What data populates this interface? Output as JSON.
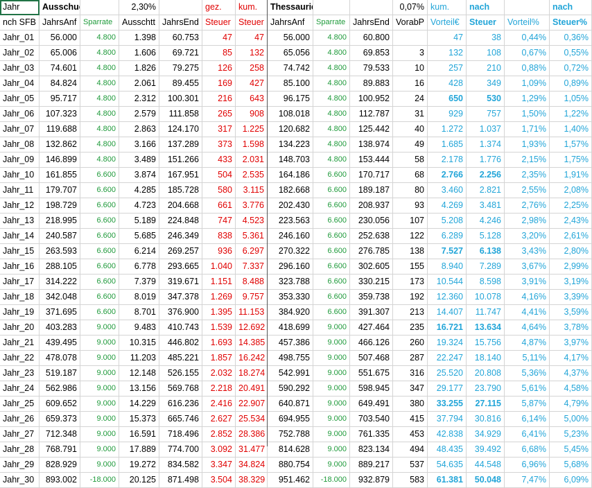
{
  "header_row1": [
    "Jahr",
    "Ausschuetter",
    "",
    "2,30%",
    "",
    "gez.",
    "kum.",
    "Thessaurierer",
    "",
    "",
    "0,07%",
    "kum.",
    "nach",
    "",
    "nach"
  ],
  "header_row2": [
    "nch SFB",
    "JahrsAnf",
    "Sparrate",
    "Ausschtt",
    "JahrsEnd",
    "Steuer",
    "Steuer",
    "JahrsAnf",
    "Sparrate",
    "JahrsEnd",
    "VorabP",
    "Vorteil€",
    "Steuer",
    "Vorteil%",
    "Steuer%"
  ],
  "rows": [
    [
      "Jahr_01",
      "56.000",
      "4.800",
      "1.398",
      "60.753",
      "47",
      "47",
      "56.000",
      "4.800",
      "60.800",
      "",
      "47",
      "38",
      "0,44%",
      "0,36%"
    ],
    [
      "Jahr_02",
      "65.006",
      "4.800",
      "1.606",
      "69.721",
      "85",
      "132",
      "65.056",
      "4.800",
      "69.853",
      "3",
      "132",
      "108",
      "0,67%",
      "0,55%"
    ],
    [
      "Jahr_03",
      "74.601",
      "4.800",
      "1.826",
      "79.275",
      "126",
      "258",
      "74.742",
      "4.800",
      "79.533",
      "10",
      "257",
      "210",
      "0,88%",
      "0,72%"
    ],
    [
      "Jahr_04",
      "84.824",
      "4.800",
      "2.061",
      "89.455",
      "169",
      "427",
      "85.100",
      "4.800",
      "89.883",
      "16",
      "428",
      "349",
      "1,09%",
      "0,89%"
    ],
    [
      "Jahr_05",
      "95.717",
      "4.800",
      "2.312",
      "100.301",
      "216",
      "643",
      "96.175",
      "4.800",
      "100.952",
      "24",
      "650",
      "530",
      "1,29%",
      "1,05%"
    ],
    [
      "Jahr_06",
      "107.323",
      "4.800",
      "2.579",
      "111.858",
      "265",
      "908",
      "108.018",
      "4.800",
      "112.787",
      "31",
      "929",
      "757",
      "1,50%",
      "1,22%"
    ],
    [
      "Jahr_07",
      "119.688",
      "4.800",
      "2.863",
      "124.170",
      "317",
      "1.225",
      "120.682",
      "4.800",
      "125.442",
      "40",
      "1.272",
      "1.037",
      "1,71%",
      "1,40%"
    ],
    [
      "Jahr_08",
      "132.862",
      "4.800",
      "3.166",
      "137.289",
      "373",
      "1.598",
      "134.223",
      "4.800",
      "138.974",
      "49",
      "1.685",
      "1.374",
      "1,93%",
      "1,57%"
    ],
    [
      "Jahr_09",
      "146.899",
      "4.800",
      "3.489",
      "151.266",
      "433",
      "2.031",
      "148.703",
      "4.800",
      "153.444",
      "58",
      "2.178",
      "1.776",
      "2,15%",
      "1,75%"
    ],
    [
      "Jahr_10",
      "161.855",
      "6.600",
      "3.874",
      "167.951",
      "504",
      "2.535",
      "164.186",
      "6.600",
      "170.717",
      "68",
      "2.766",
      "2.256",
      "2,35%",
      "1,91%"
    ],
    [
      "Jahr_11",
      "179.707",
      "6.600",
      "4.285",
      "185.728",
      "580",
      "3.115",
      "182.668",
      "6.600",
      "189.187",
      "80",
      "3.460",
      "2.821",
      "2,55%",
      "2,08%"
    ],
    [
      "Jahr_12",
      "198.729",
      "6.600",
      "4.723",
      "204.668",
      "661",
      "3.776",
      "202.430",
      "6.600",
      "208.937",
      "93",
      "4.269",
      "3.481",
      "2,76%",
      "2,25%"
    ],
    [
      "Jahr_13",
      "218.995",
      "6.600",
      "5.189",
      "224.848",
      "747",
      "4.523",
      "223.563",
      "6.600",
      "230.056",
      "107",
      "5.208",
      "4.246",
      "2,98%",
      "2,43%"
    ],
    [
      "Jahr_14",
      "240.587",
      "6.600",
      "5.685",
      "246.349",
      "838",
      "5.361",
      "246.160",
      "6.600",
      "252.638",
      "122",
      "6.289",
      "5.128",
      "3,20%",
      "2,61%"
    ],
    [
      "Jahr_15",
      "263.593",
      "6.600",
      "6.214",
      "269.257",
      "936",
      "6.297",
      "270.322",
      "6.600",
      "276.785",
      "138",
      "7.527",
      "6.138",
      "3,43%",
      "2,80%"
    ],
    [
      "Jahr_16",
      "288.105",
      "6.600",
      "6.778",
      "293.665",
      "1.040",
      "7.337",
      "296.160",
      "6.600",
      "302.605",
      "155",
      "8.940",
      "7.289",
      "3,67%",
      "2,99%"
    ],
    [
      "Jahr_17",
      "314.222",
      "6.600",
      "7.379",
      "319.671",
      "1.151",
      "8.488",
      "323.788",
      "6.600",
      "330.215",
      "173",
      "10.544",
      "8.598",
      "3,91%",
      "3,19%"
    ],
    [
      "Jahr_18",
      "342.048",
      "6.600",
      "8.019",
      "347.378",
      "1.269",
      "9.757",
      "353.330",
      "6.600",
      "359.738",
      "192",
      "12.360",
      "10.078",
      "4,16%",
      "3,39%"
    ],
    [
      "Jahr_19",
      "371.695",
      "6.600",
      "8.701",
      "376.900",
      "1.395",
      "11.153",
      "384.920",
      "6.600",
      "391.307",
      "213",
      "14.407",
      "11.747",
      "4,41%",
      "3,59%"
    ],
    [
      "Jahr_20",
      "403.283",
      "9.000",
      "9.483",
      "410.743",
      "1.539",
      "12.692",
      "418.699",
      "9.000",
      "427.464",
      "235",
      "16.721",
      "13.634",
      "4,64%",
      "3,78%"
    ],
    [
      "Jahr_21",
      "439.495",
      "9.000",
      "10.315",
      "446.802",
      "1.693",
      "14.385",
      "457.386",
      "9.000",
      "466.126",
      "260",
      "19.324",
      "15.756",
      "4,87%",
      "3,97%"
    ],
    [
      "Jahr_22",
      "478.078",
      "9.000",
      "11.203",
      "485.221",
      "1.857",
      "16.242",
      "498.755",
      "9.000",
      "507.468",
      "287",
      "22.247",
      "18.140",
      "5,11%",
      "4,17%"
    ],
    [
      "Jahr_23",
      "519.187",
      "9.000",
      "12.148",
      "526.155",
      "2.032",
      "18.274",
      "542.991",
      "9.000",
      "551.675",
      "316",
      "25.520",
      "20.808",
      "5,36%",
      "4,37%"
    ],
    [
      "Jahr_24",
      "562.986",
      "9.000",
      "13.156",
      "569.768",
      "2.218",
      "20.491",
      "590.292",
      "9.000",
      "598.945",
      "347",
      "29.177",
      "23.790",
      "5,61%",
      "4,58%"
    ],
    [
      "Jahr_25",
      "609.652",
      "9.000",
      "14.229",
      "616.236",
      "2.416",
      "22.907",
      "640.871",
      "9.000",
      "649.491",
      "380",
      "33.255",
      "27.115",
      "5,87%",
      "4,79%"
    ],
    [
      "Jahr_26",
      "659.373",
      "9.000",
      "15.373",
      "665.746",
      "2.627",
      "25.534",
      "694.955",
      "9.000",
      "703.540",
      "415",
      "37.794",
      "30.816",
      "6,14%",
      "5,00%"
    ],
    [
      "Jahr_27",
      "712.348",
      "9.000",
      "16.591",
      "718.496",
      "2.852",
      "28.386",
      "752.788",
      "9.000",
      "761.335",
      "453",
      "42.838",
      "34.929",
      "6,41%",
      "5,23%"
    ],
    [
      "Jahr_28",
      "768.791",
      "9.000",
      "17.889",
      "774.700",
      "3.092",
      "31.477",
      "814.628",
      "9.000",
      "823.134",
      "494",
      "48.435",
      "39.492",
      "6,68%",
      "5,45%"
    ],
    [
      "Jahr_29",
      "828.929",
      "9.000",
      "19.272",
      "834.582",
      "3.347",
      "34.824",
      "880.754",
      "9.000",
      "889.217",
      "537",
      "54.635",
      "44.548",
      "6,96%",
      "5,68%"
    ],
    [
      "Jahr_30",
      "893.002",
      "-18.000",
      "20.125",
      "871.498",
      "3.504",
      "38.329",
      "951.462",
      "-18.000",
      "932.879",
      "583",
      "61.381",
      "50.048",
      "7,47%",
      "6,09%"
    ]
  ],
  "colors": {
    "red": "#e00000",
    "green": "#1e9a3a",
    "blue": "#22a5d8",
    "selection": "#217346"
  }
}
